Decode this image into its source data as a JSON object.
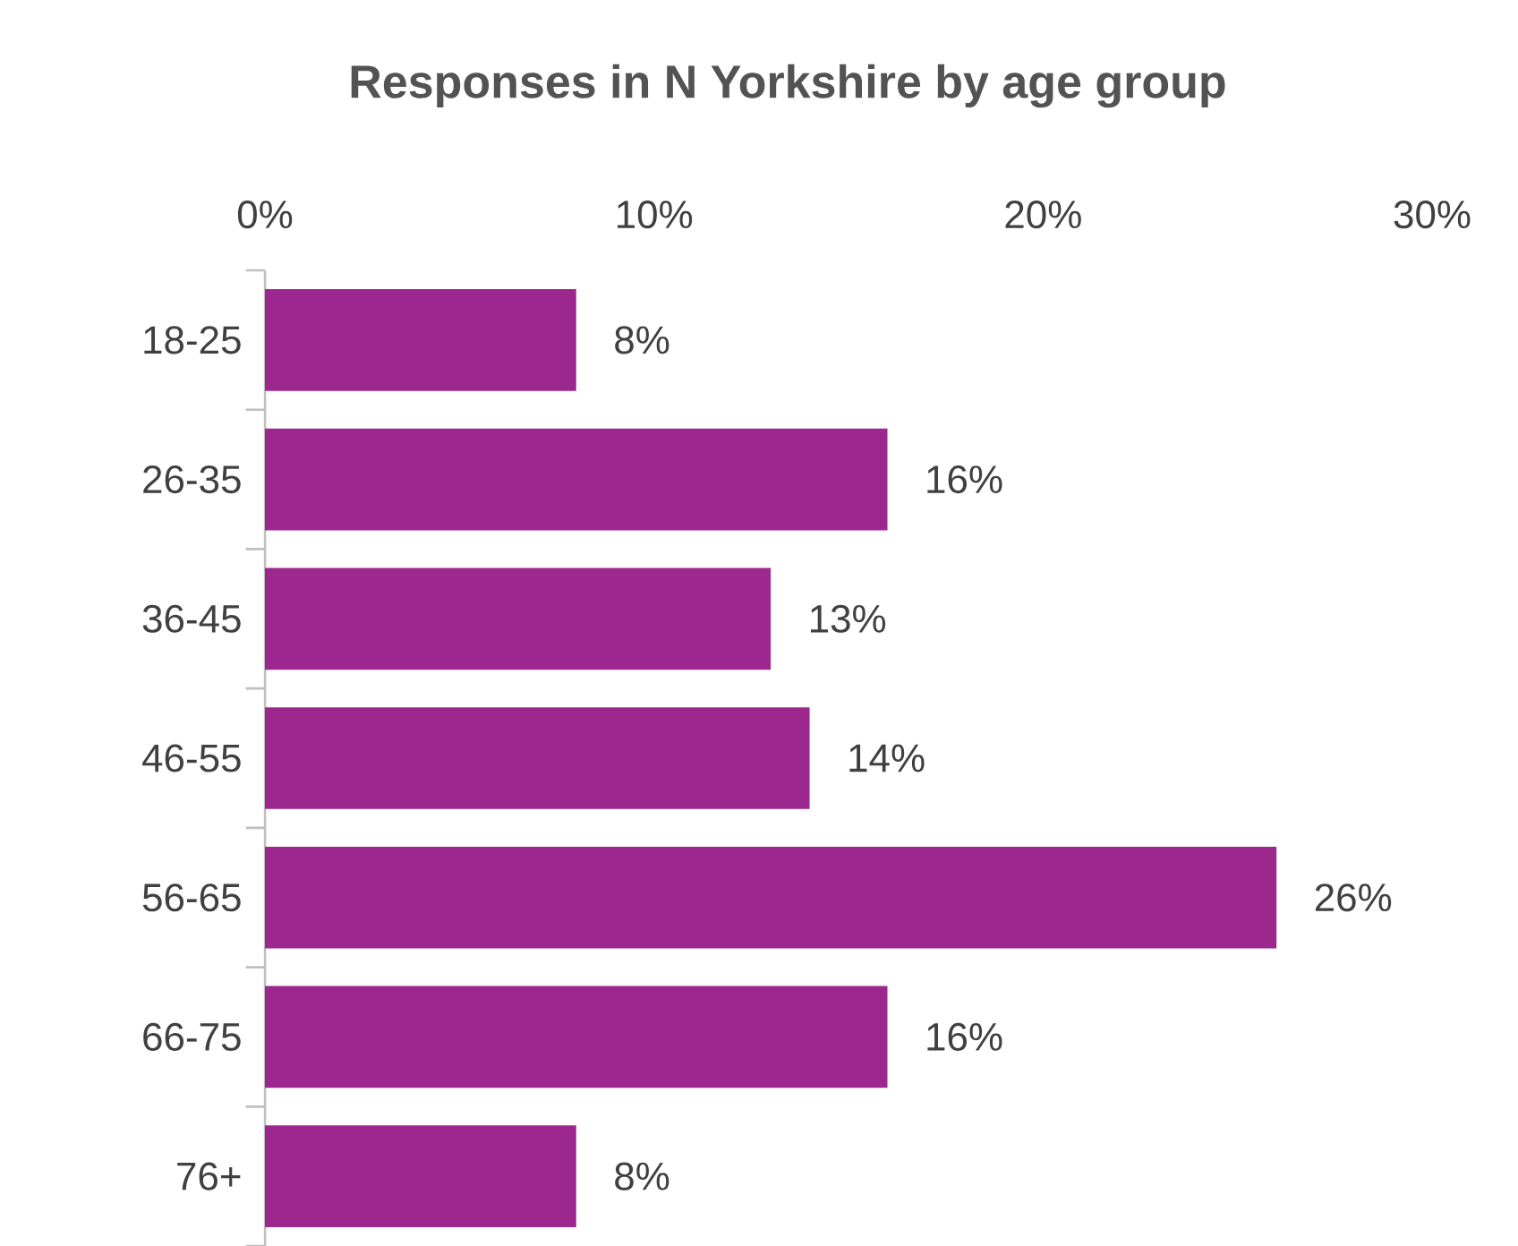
{
  "chart_data": {
    "type": "bar",
    "orientation": "horizontal",
    "title": "Responses in N Yorkshire by age group",
    "categories": [
      "18-25",
      "26-35",
      "36-45",
      "46-55",
      "56-65",
      "66-75",
      "76+"
    ],
    "values": [
      8,
      16,
      13,
      14,
      26,
      16,
      8
    ],
    "value_labels": [
      "8%",
      "16%",
      "13%",
      "14%",
      "26%",
      "16%",
      "8%"
    ],
    "color": "#9c278f",
    "xlim": [
      0,
      30
    ],
    "xticks": [
      {
        "value": 0,
        "label": "0%"
      },
      {
        "value": 10,
        "label": "10%"
      },
      {
        "value": 20,
        "label": "20%"
      },
      {
        "value": 30,
        "label": "30%"
      }
    ]
  }
}
